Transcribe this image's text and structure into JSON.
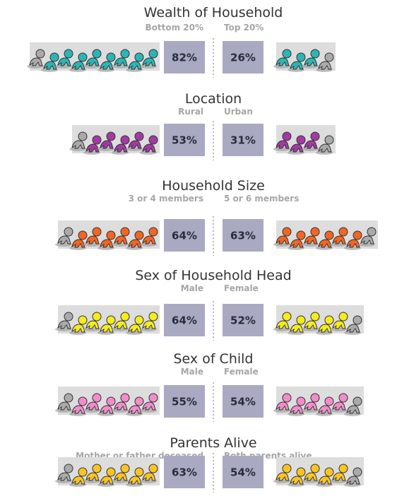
{
  "chart_data": [
    {
      "type": "pictogram",
      "title": "Wealth of Household",
      "categories": [
        "Bottom 20%",
        "Top 20%"
      ],
      "values": [
        82,
        26
      ],
      "value_labels": [
        "82%",
        "26%"
      ],
      "color": "#2db4b4"
    },
    {
      "type": "pictogram",
      "title": "Location",
      "categories": [
        "Rural",
        "Urban"
      ],
      "values": [
        53,
        31
      ],
      "value_labels": [
        "53%",
        "31%"
      ],
      "color": "#a33aa3"
    },
    {
      "type": "pictogram",
      "title": "Household Size",
      "categories": [
        "3 or 4 members",
        "5 or 6 members"
      ],
      "values": [
        64,
        63
      ],
      "value_labels": [
        "64%",
        "63%"
      ],
      "color": "#f26522"
    },
    {
      "type": "pictogram",
      "title": "Sex of Household Head",
      "categories": [
        "Male",
        "Female"
      ],
      "values": [
        64,
        52
      ],
      "value_labels": [
        "64%",
        "52%"
      ],
      "color": "#f4ec1c"
    },
    {
      "type": "pictogram",
      "title": "Sex of Child",
      "categories": [
        "Male",
        "Female"
      ],
      "values": [
        55,
        54
      ],
      "value_labels": [
        "55%",
        "54%"
      ],
      "color": "#f28ccb"
    },
    {
      "type": "pictogram",
      "title": "Parents Alive",
      "categories": [
        "Mother or father deceased",
        "Both parents alive"
      ],
      "values": [
        63,
        54
      ],
      "value_labels": [
        "63%",
        "54%"
      ],
      "color": "#f9c423"
    }
  ]
}
